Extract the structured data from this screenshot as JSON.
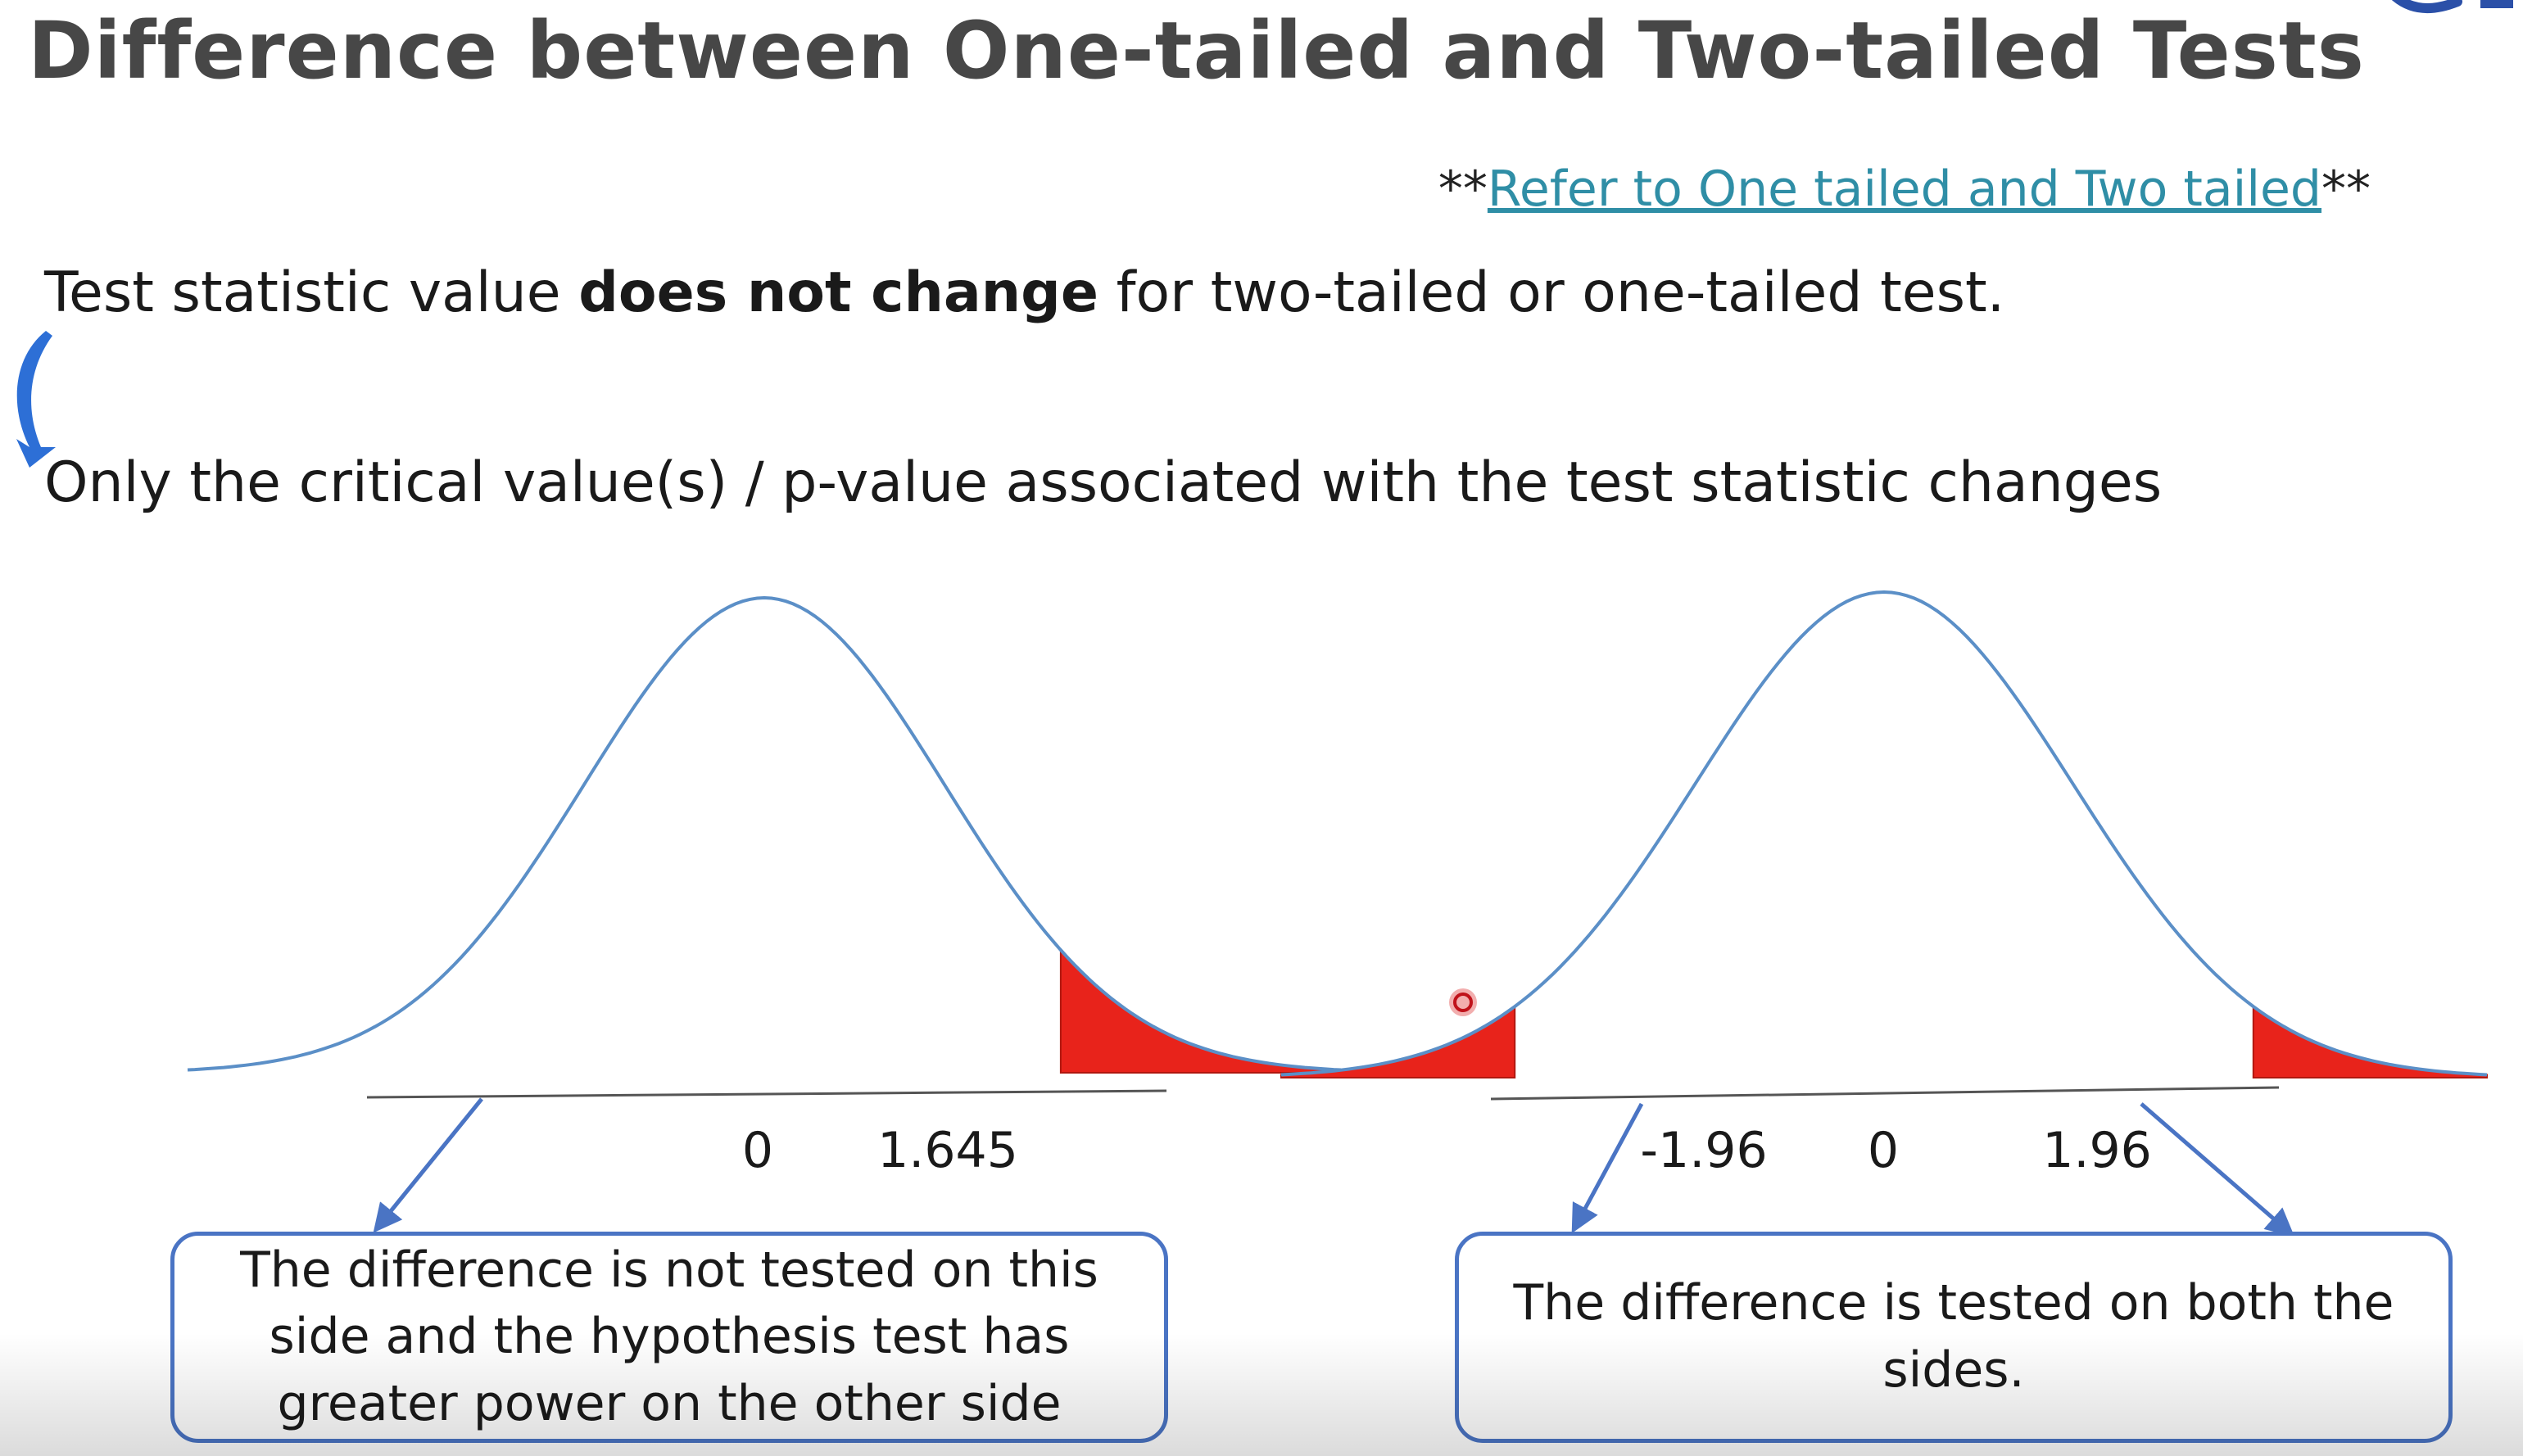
{
  "title": "Difference between One-tailed and Two-tailed Tests",
  "reference": {
    "prefix": "**",
    "link_text": "Refer to One tailed and Two tailed",
    "suffix": "**"
  },
  "statement": {
    "part1": "Test statistic value ",
    "bold": "does not change",
    "part2": " for two-tailed or one-tailed test."
  },
  "conclusion": "Only the critical value(s) / p-value associated with the test statistic changes",
  "one_tailed": {
    "labels": [
      "0",
      "1.645"
    ],
    "critical_z": 1.645,
    "note": "The difference is not tested on this side and the hypothesis test has greater power on the other side"
  },
  "two_tailed": {
    "labels": [
      "-1.96",
      "0",
      "1.96"
    ],
    "critical_z": 1.96,
    "note": "The difference is tested on both the sides."
  },
  "colors": {
    "curve": "#5b8fc7",
    "tail": "#e8231b",
    "tail_stroke": "#b01810",
    "arrow": "#4a74c4",
    "box_border": "#4a74c4",
    "link": "#2f8ea6",
    "title": "#474747"
  }
}
